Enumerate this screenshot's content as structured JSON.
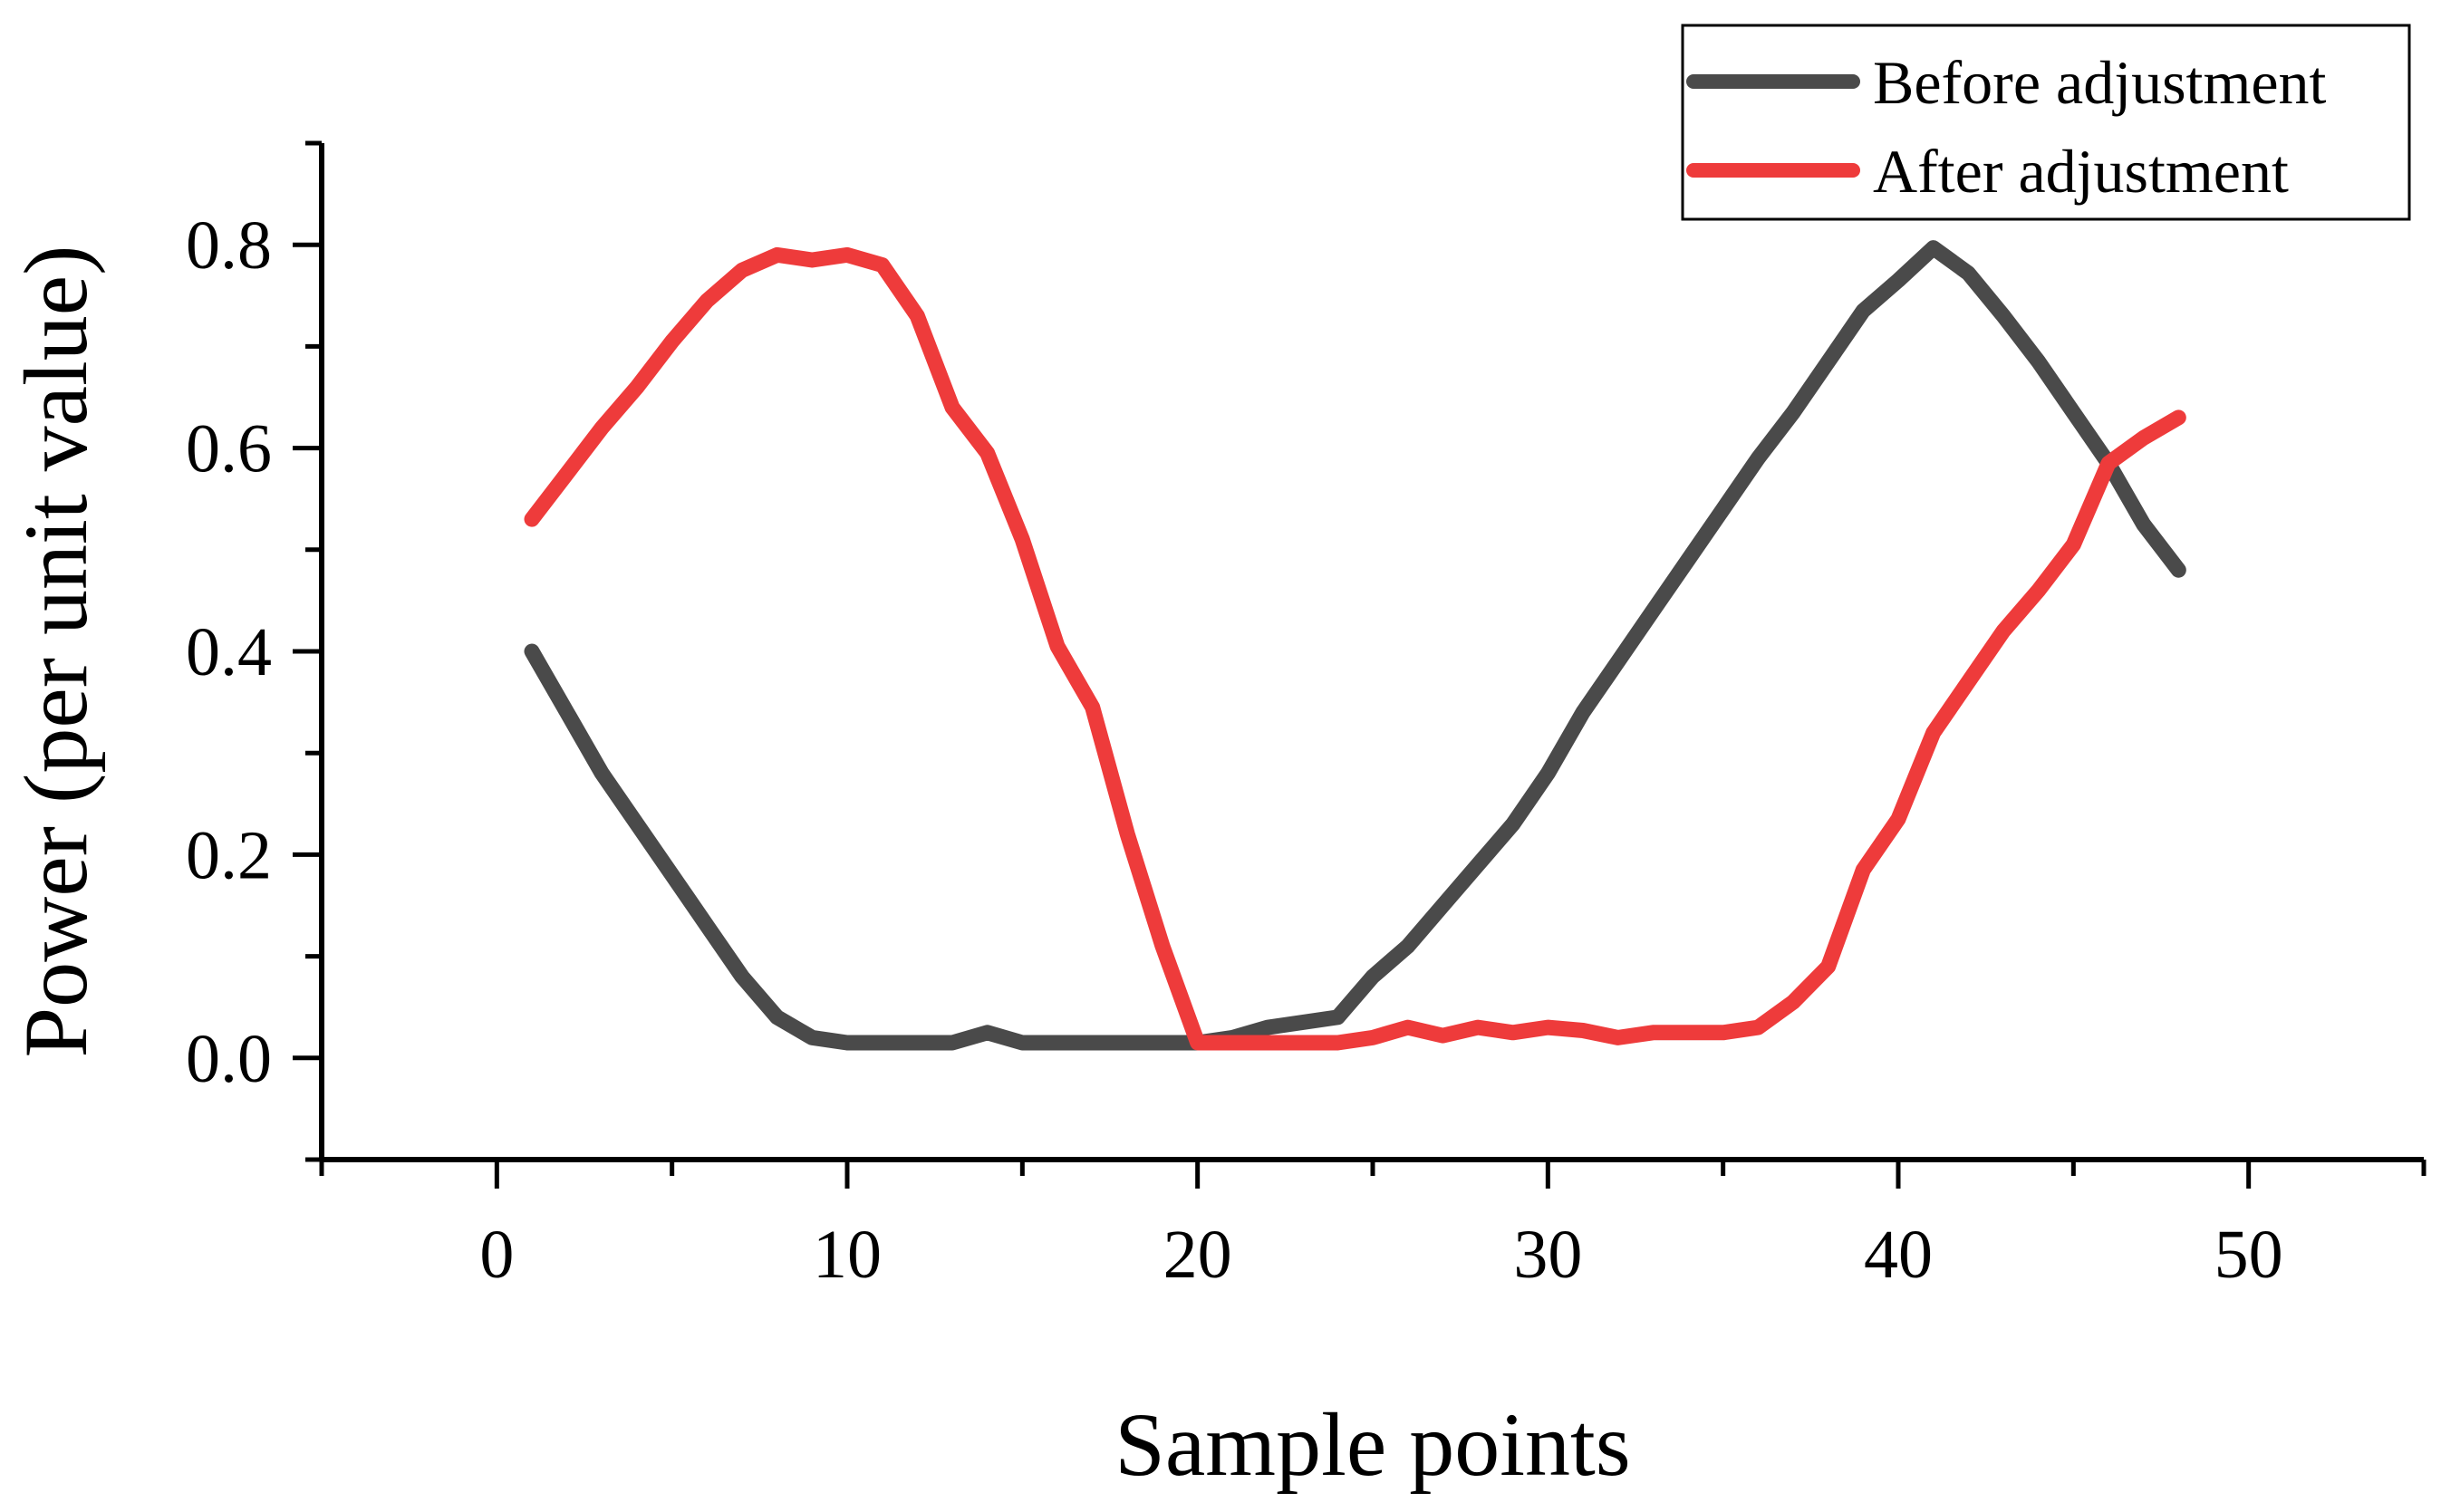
{
  "chart_data": {
    "type": "line",
    "title": "",
    "xlabel": "Sample points",
    "ylabel": "Power (per unit value)",
    "xlim": [
      -5,
      55
    ],
    "ylim": [
      -0.1,
      0.9
    ],
    "xticks": [
      0,
      10,
      20,
      30,
      40,
      50
    ],
    "yticks": [
      0.0,
      0.2,
      0.4,
      0.6,
      0.8
    ],
    "xtick_labels": [
      "0",
      "10",
      "20",
      "30",
      "40",
      "50"
    ],
    "ytick_labels": [
      "0.0",
      "0.2",
      "0.4",
      "0.6",
      "0.8"
    ],
    "grid": false,
    "legend_position": "top-right",
    "x": [
      1,
      2,
      3,
      4,
      5,
      6,
      7,
      8,
      9,
      10,
      11,
      12,
      13,
      14,
      15,
      16,
      17,
      18,
      19,
      20,
      21,
      22,
      23,
      24,
      25,
      26,
      27,
      28,
      29,
      30,
      31,
      32,
      33,
      34,
      35,
      36,
      37,
      38,
      39,
      40,
      41,
      42,
      43,
      44,
      45,
      46,
      47,
      48
    ],
    "series": [
      {
        "name": "Before adjustment",
        "color": "#4a4a4a",
        "values": [
          0.4,
          0.34,
          0.28,
          0.23,
          0.18,
          0.13,
          0.08,
          0.04,
          0.02,
          0.015,
          0.015,
          0.015,
          0.015,
          0.025,
          0.015,
          0.015,
          0.015,
          0.015,
          0.015,
          0.015,
          0.02,
          0.03,
          0.035,
          0.04,
          0.08,
          0.11,
          0.15,
          0.19,
          0.23,
          0.28,
          0.34,
          0.39,
          0.44,
          0.49,
          0.54,
          0.59,
          0.635,
          0.685,
          0.735,
          0.765,
          0.797,
          0.772,
          0.73,
          0.685,
          0.635,
          0.585,
          0.525,
          0.48
        ]
      },
      {
        "name": "After adjustment",
        "color": "#ee3b3b",
        "values": [
          0.53,
          0.575,
          0.62,
          0.66,
          0.705,
          0.745,
          0.775,
          0.79,
          0.785,
          0.79,
          0.78,
          0.73,
          0.64,
          0.595,
          0.51,
          0.405,
          0.345,
          0.22,
          0.11,
          0.015,
          0.015,
          0.015,
          0.015,
          0.015,
          0.02,
          0.03,
          0.022,
          0.03,
          0.025,
          0.03,
          0.027,
          0.02,
          0.025,
          0.025,
          0.025,
          0.03,
          0.055,
          0.09,
          0.185,
          0.235,
          0.32,
          0.37,
          0.42,
          0.46,
          0.505,
          0.585,
          0.61,
          0.63
        ]
      }
    ]
  }
}
